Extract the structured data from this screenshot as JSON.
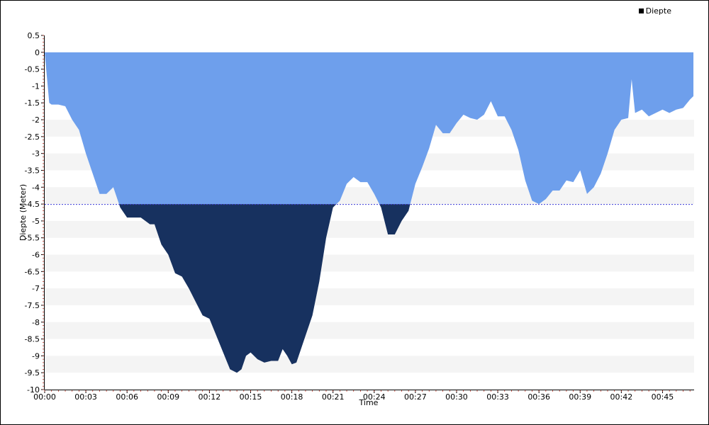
{
  "legend": {
    "label": "Diepte"
  },
  "chart_data": {
    "type": "area",
    "title": "",
    "xlabel": "Time",
    "ylabel": "Diepte (Meter)",
    "ylim": [
      -10,
      0.5
    ],
    "yticks": [
      0.5,
      0,
      -0.5,
      -1,
      -1.5,
      -2,
      -2.5,
      -3,
      -3.5,
      -4,
      -4.5,
      -5,
      -5.5,
      -6,
      -6.5,
      -7,
      -7.5,
      -8,
      -8.5,
      -9,
      -9.5,
      -10
    ],
    "xlim_minutes": [
      0,
      47.3
    ],
    "xticks": [
      "00:00",
      "00:03",
      "00:06",
      "00:09",
      "00:12",
      "00:15",
      "00:18",
      "00:21",
      "00:24",
      "00:27",
      "00:30",
      "00:33",
      "00:36",
      "00:39",
      "00:42",
      "00:45"
    ],
    "threshold": -4.5,
    "colors": {
      "above": "#6e9fec",
      "below": "#17315f",
      "threshold_line": "#3b3bd6",
      "band": "#f4f4f4"
    },
    "legend_position": "top-right",
    "series": [
      {
        "name": "Diepte",
        "time": [
          "00:00",
          "00:00:20",
          "00:00:30",
          "00:01",
          "00:01:30",
          "00:02",
          "00:02:30",
          "00:03",
          "00:03:30",
          "00:04",
          "00:04:30",
          "00:05",
          "00:05:30",
          "00:06",
          "00:06:30",
          "00:07",
          "00:07:20",
          "00:07:40",
          "00:08",
          "00:08:30",
          "00:09",
          "00:09:30",
          "00:10",
          "00:10:30",
          "00:11",
          "00:11:30",
          "00:12",
          "00:12:30",
          "00:13",
          "00:13:30",
          "00:14",
          "00:14:20",
          "00:14:40",
          "00:15",
          "00:15:30",
          "00:16",
          "00:16:30",
          "00:17",
          "00:17:20",
          "00:17:40",
          "00:18",
          "00:18:20",
          "00:18:40",
          "00:19",
          "00:19:30",
          "00:20",
          "00:20:30",
          "00:21",
          "00:21:30",
          "00:22",
          "00:22:30",
          "00:23",
          "00:23:30",
          "00:24",
          "00:24:30",
          "00:25",
          "00:25:30",
          "00:26",
          "00:26:30",
          "00:27",
          "00:27:30",
          "00:28",
          "00:28:30",
          "00:29",
          "00:29:30",
          "00:30",
          "00:30:30",
          "00:31",
          "00:31:30",
          "00:32",
          "00:32:30",
          "00:33",
          "00:33:30",
          "00:34",
          "00:34:30",
          "00:35",
          "00:35:30",
          "00:36",
          "00:36:30",
          "00:37",
          "00:37:30",
          "00:38",
          "00:38:30",
          "00:39",
          "00:39:30",
          "00:40",
          "00:40:30",
          "00:41",
          "00:41:30",
          "00:42",
          "00:42:30",
          "00:42:45",
          "00:43",
          "00:43:30",
          "00:44",
          "00:44:30",
          "00:45",
          "00:45:30",
          "00:46",
          "00:46:30",
          "00:47",
          "00:47:15"
        ],
        "depth": [
          0,
          -1.5,
          -1.55,
          -1.55,
          -1.6,
          -2.0,
          -2.3,
          -3.0,
          -3.6,
          -4.2,
          -4.2,
          -4.0,
          -4.6,
          -4.9,
          -4.9,
          -4.9,
          -5.0,
          -5.1,
          -5.1,
          -5.7,
          -6.0,
          -6.55,
          -6.65,
          -7.0,
          -7.4,
          -7.8,
          -7.9,
          -8.4,
          -8.9,
          -9.4,
          -9.5,
          -9.4,
          -9.0,
          -8.9,
          -9.1,
          -9.2,
          -9.15,
          -9.15,
          -8.8,
          -9.0,
          -9.25,
          -9.2,
          -8.8,
          -8.4,
          -7.8,
          -6.8,
          -5.5,
          -4.6,
          -4.4,
          -3.9,
          -3.7,
          -3.85,
          -3.85,
          -4.2,
          -4.6,
          -5.4,
          -5.4,
          -5.0,
          -4.7,
          -3.9,
          -3.4,
          -2.85,
          -2.15,
          -2.4,
          -2.4,
          -2.1,
          -1.85,
          -1.95,
          -2.0,
          -1.85,
          -1.45,
          -1.9,
          -1.9,
          -2.3,
          -2.9,
          -3.8,
          -4.4,
          -4.5,
          -4.35,
          -4.1,
          -4.1,
          -3.8,
          -3.85,
          -3.5,
          -4.2,
          -4.0,
          -3.6,
          -3.0,
          -2.3,
          -2.0,
          -1.95,
          -0.8,
          -1.8,
          -1.7,
          -1.9,
          -1.8,
          -1.7,
          -1.8,
          -1.7,
          -1.65,
          -1.4,
          -1.3
        ]
      }
    ]
  }
}
